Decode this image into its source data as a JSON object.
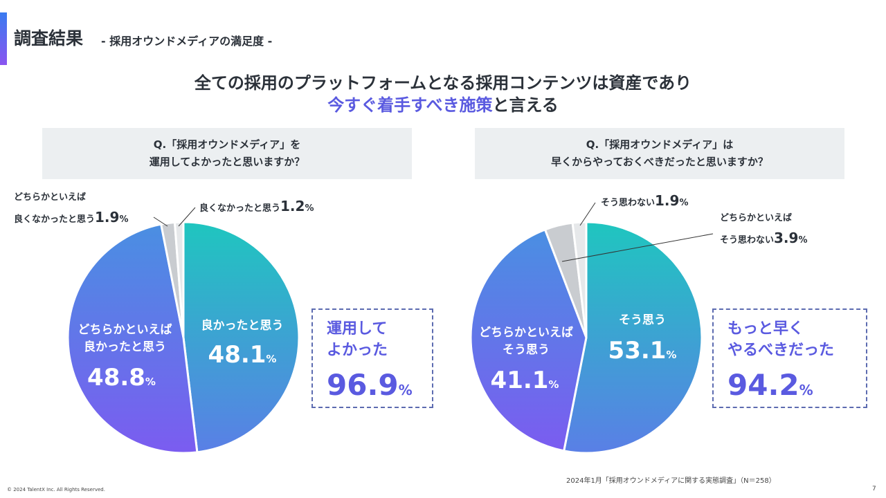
{
  "header": {
    "title": "調査結果",
    "subtitle": "- 採用オウンドメディアの満足度 -"
  },
  "headline": {
    "line1": "全ての採用のプラットフォームとなる採用コンテンツは資産であり",
    "line2_em": "今すぐ着手すべき施策",
    "line2_rest": "と言える"
  },
  "colors": {
    "teal": "#1fc6bf",
    "blue": "#4f86e4",
    "purple": "#7b5cf0",
    "gray": "#c9ccd0",
    "lightgray": "#e6e8ea",
    "accent": "#5a5ae0"
  },
  "chart_data": [
    {
      "type": "pie",
      "title": "Q.「採用オウンドメディア」を 運用してよかったと思いますか？",
      "title_lines": [
        "Q.「採用オウンドメディア」を",
        "運用してよかったと思いますか？"
      ],
      "slices": [
        {
          "label": "良かったと思う",
          "value": 48.1
        },
        {
          "label": "どちらかといえば良かったと思う",
          "label_lines": [
            "どちらかといえば",
            "良かったと思う"
          ],
          "value": 48.8
        },
        {
          "label": "どちらかといえば良くなかったと思う",
          "label_lines": [
            "どちらかといえば",
            "良くなかったと思う"
          ],
          "value": 1.9
        },
        {
          "label": "良くなかったと思う",
          "value": 1.2
        }
      ],
      "summary": {
        "lines": [
          "運用して",
          "よかった"
        ],
        "value": 96.9
      }
    },
    {
      "type": "pie",
      "title": "Q.「採用オウンドメディア」は 早くからやっておくべきだったと思いますか？",
      "title_lines": [
        "Q.「採用オウンドメディア」は",
        "早くからやっておくべきだったと思いますか？"
      ],
      "slices": [
        {
          "label": "そう思う",
          "value": 53.1
        },
        {
          "label": "どちらかといえばそう思う",
          "label_lines": [
            "どちらかといえば",
            "そう思う"
          ],
          "value": 41.1
        },
        {
          "label": "どちらかといえばそう思わない",
          "label_lines": [
            "どちらかといえば",
            "そう思わない"
          ],
          "value": 3.9
        },
        {
          "label": "そう思わない",
          "value": 1.9
        }
      ],
      "summary": {
        "lines": [
          "もっと早く",
          "やるべきだった"
        ],
        "value": 94.2
      }
    }
  ],
  "unit": "%",
  "footer": {
    "source": "2024年1月「採用オウンドメディアに関する実態調査」（N＝258）",
    "copyright": "© 2024 TalentX Inc. All Rights Reserved.",
    "page": "7"
  }
}
